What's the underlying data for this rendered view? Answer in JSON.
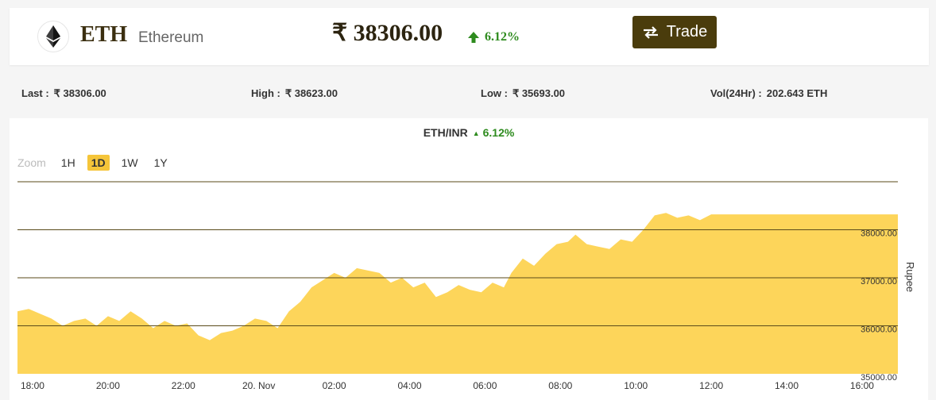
{
  "header": {
    "symbol": "ETH",
    "name": "Ethereum",
    "price": "₹ 38306.00",
    "change": "6.12%",
    "trade_label": "Trade",
    "icons": {
      "logo": "ethereum-icon",
      "change": "arrow-up-icon",
      "trade": "swap-arrows-icon"
    },
    "colors": {
      "positive": "#2e8b1e",
      "trade_bg": "#4a3c0c",
      "accent": "#f5c53a"
    }
  },
  "stats": {
    "last_label": "Last :",
    "last_value": "₹ 38306.00",
    "high_label": "High :",
    "high_value": "₹ 38623.00",
    "low_label": "Low :",
    "low_value": "₹ 35693.00",
    "vol_label": "Vol(24Hr) :",
    "vol_value": "202.643 ETH"
  },
  "chart": {
    "pair": "ETH/INR",
    "change": "6.12%",
    "zoom_label": "Zoom",
    "zoom_options": [
      "1H",
      "1D",
      "1W",
      "1Y"
    ],
    "zoom_selected": "1D"
  },
  "chart_data": {
    "type": "area",
    "title": "ETH/INR",
    "ylabel": "Rupee",
    "xlabel": "",
    "color": "#fdd55a",
    "ylim": [
      35000,
      39000
    ],
    "y_ticks": [
      "35000.00",
      "36000.00",
      "37000.00",
      "38000.00"
    ],
    "x_tick_labels": [
      "18:00",
      "20:00",
      "22:00",
      "20. Nov",
      "02:00",
      "04:00",
      "06:00",
      "08:00",
      "10:00",
      "12:00",
      "14:00",
      "16:00"
    ],
    "x_hours_range": [
      17.6,
      40.95
    ],
    "x_tick_hours": [
      18,
      20,
      22,
      24,
      26,
      28,
      30,
      32,
      34,
      36,
      38,
      40
    ],
    "series": [
      {
        "hours": [
          17.6,
          17.9,
          18.2,
          18.5,
          18.8,
          19.1,
          19.4,
          19.7,
          20.0,
          20.3,
          20.6,
          20.9,
          21.2,
          21.5,
          21.8,
          22.1,
          22.4,
          22.7,
          23.0,
          23.3,
          23.6,
          23.9,
          24.2,
          24.5,
          24.8,
          25.1,
          25.4,
          25.7,
          26.0,
          26.3,
          26.6,
          26.9,
          27.2,
          27.5,
          27.8,
          28.1,
          28.4,
          28.7,
          29.0,
          29.3,
          29.6,
          29.9,
          30.2,
          30.5,
          30.7,
          31.0,
          31.3,
          31.6,
          31.9,
          32.2,
          32.4,
          32.7,
          33.0,
          33.3,
          33.6,
          33.9,
          34.2,
          34.5,
          34.8,
          35.1,
          35.4,
          35.7,
          36.0,
          37.0,
          38.0,
          39.0,
          40.0,
          40.95
        ],
        "values": [
          36300,
          36350,
          36250,
          36150,
          36000,
          36100,
          36150,
          36000,
          36200,
          36100,
          36300,
          36150,
          35950,
          36100,
          36000,
          36050,
          35800,
          35700,
          35850,
          35900,
          36000,
          36150,
          36100,
          35950,
          36300,
          36500,
          36800,
          36950,
          37100,
          37000,
          37200,
          37150,
          37100,
          36900,
          37000,
          36800,
          36900,
          36600,
          36700,
          36850,
          36750,
          36700,
          36900,
          36800,
          37100,
          37400,
          37250,
          37500,
          37700,
          37750,
          37900,
          37700,
          37650,
          37600,
          37800,
          37750,
          38000,
          38300,
          38350,
          38250,
          38300,
          38200,
          38320,
          38320,
          38320,
          38320,
          38320,
          38320
        ]
      }
    ]
  }
}
